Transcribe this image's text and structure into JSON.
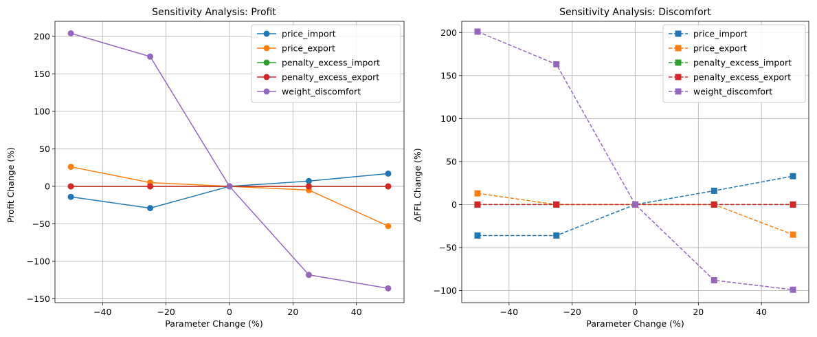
{
  "chart_data": [
    {
      "type": "line",
      "title": "Sensitivity Analysis: Profit",
      "xlabel": "Parameter Change (%)",
      "ylabel": "Profit Change (%)",
      "xlim": [
        -55,
        55
      ],
      "ylim": [
        -155,
        220
      ],
      "xticks": [
        -40,
        -20,
        0,
        20,
        40
      ],
      "xtick_labels": [
        "−40",
        "−20",
        "0",
        "20",
        "40"
      ],
      "yticks": [
        -150,
        -100,
        -50,
        0,
        50,
        100,
        150,
        200
      ],
      "ytick_labels": [
        "−150",
        "−100",
        "−50",
        "0",
        "50",
        "100",
        "150",
        "200"
      ],
      "grid": true,
      "legend_position": "top-right",
      "marker": "circle",
      "line_style": "solid",
      "x": [
        -50,
        -25,
        0,
        25,
        50
      ],
      "series": [
        {
          "name": "price_import",
          "color": "#1f77b4",
          "values": [
            -14,
            -29,
            0,
            7,
            17
          ]
        },
        {
          "name": "price_export",
          "color": "#ff7f0e",
          "values": [
            26,
            5,
            0,
            -5,
            -53
          ]
        },
        {
          "name": "penalty_excess_import",
          "color": "#2ca02c",
          "values": [
            0,
            0,
            0,
            0,
            0
          ]
        },
        {
          "name": "penalty_excess_export",
          "color": "#d62728",
          "values": [
            0,
            0,
            0,
            0,
            0
          ]
        },
        {
          "name": "weight_discomfort",
          "color": "#9467bd",
          "values": [
            204,
            173,
            0,
            -118,
            -136
          ]
        }
      ]
    },
    {
      "type": "line",
      "title": "Sensitivity Analysis: Discomfort",
      "xlabel": "Parameter Change (%)",
      "ylabel": "ΔFFL Change (%)",
      "xlim": [
        -55,
        55
      ],
      "ylim": [
        -114,
        213
      ],
      "xticks": [
        -40,
        -20,
        0,
        20,
        40
      ],
      "xtick_labels": [
        "−40",
        "−20",
        "0",
        "20",
        "40"
      ],
      "yticks": [
        -100,
        -50,
        0,
        50,
        100,
        150,
        200
      ],
      "ytick_labels": [
        "−100",
        "−50",
        "0",
        "50",
        "100",
        "150",
        "200"
      ],
      "grid": true,
      "legend_position": "top-right",
      "marker": "square",
      "line_style": "dashed",
      "x": [
        -50,
        -25,
        0,
        25,
        50
      ],
      "series": [
        {
          "name": "price_import",
          "color": "#1f77b4",
          "values": [
            -36,
            -36,
            0,
            16,
            33
          ]
        },
        {
          "name": "price_export",
          "color": "#ff7f0e",
          "values": [
            13,
            0,
            0,
            0,
            -35
          ]
        },
        {
          "name": "penalty_excess_import",
          "color": "#2ca02c",
          "values": [
            0,
            0,
            0,
            0,
            0
          ]
        },
        {
          "name": "penalty_excess_export",
          "color": "#d62728",
          "values": [
            0,
            0,
            0,
            0,
            0
          ]
        },
        {
          "name": "weight_discomfort",
          "color": "#9467bd",
          "values": [
            201,
            163,
            0,
            -88,
            -99
          ]
        }
      ]
    }
  ]
}
